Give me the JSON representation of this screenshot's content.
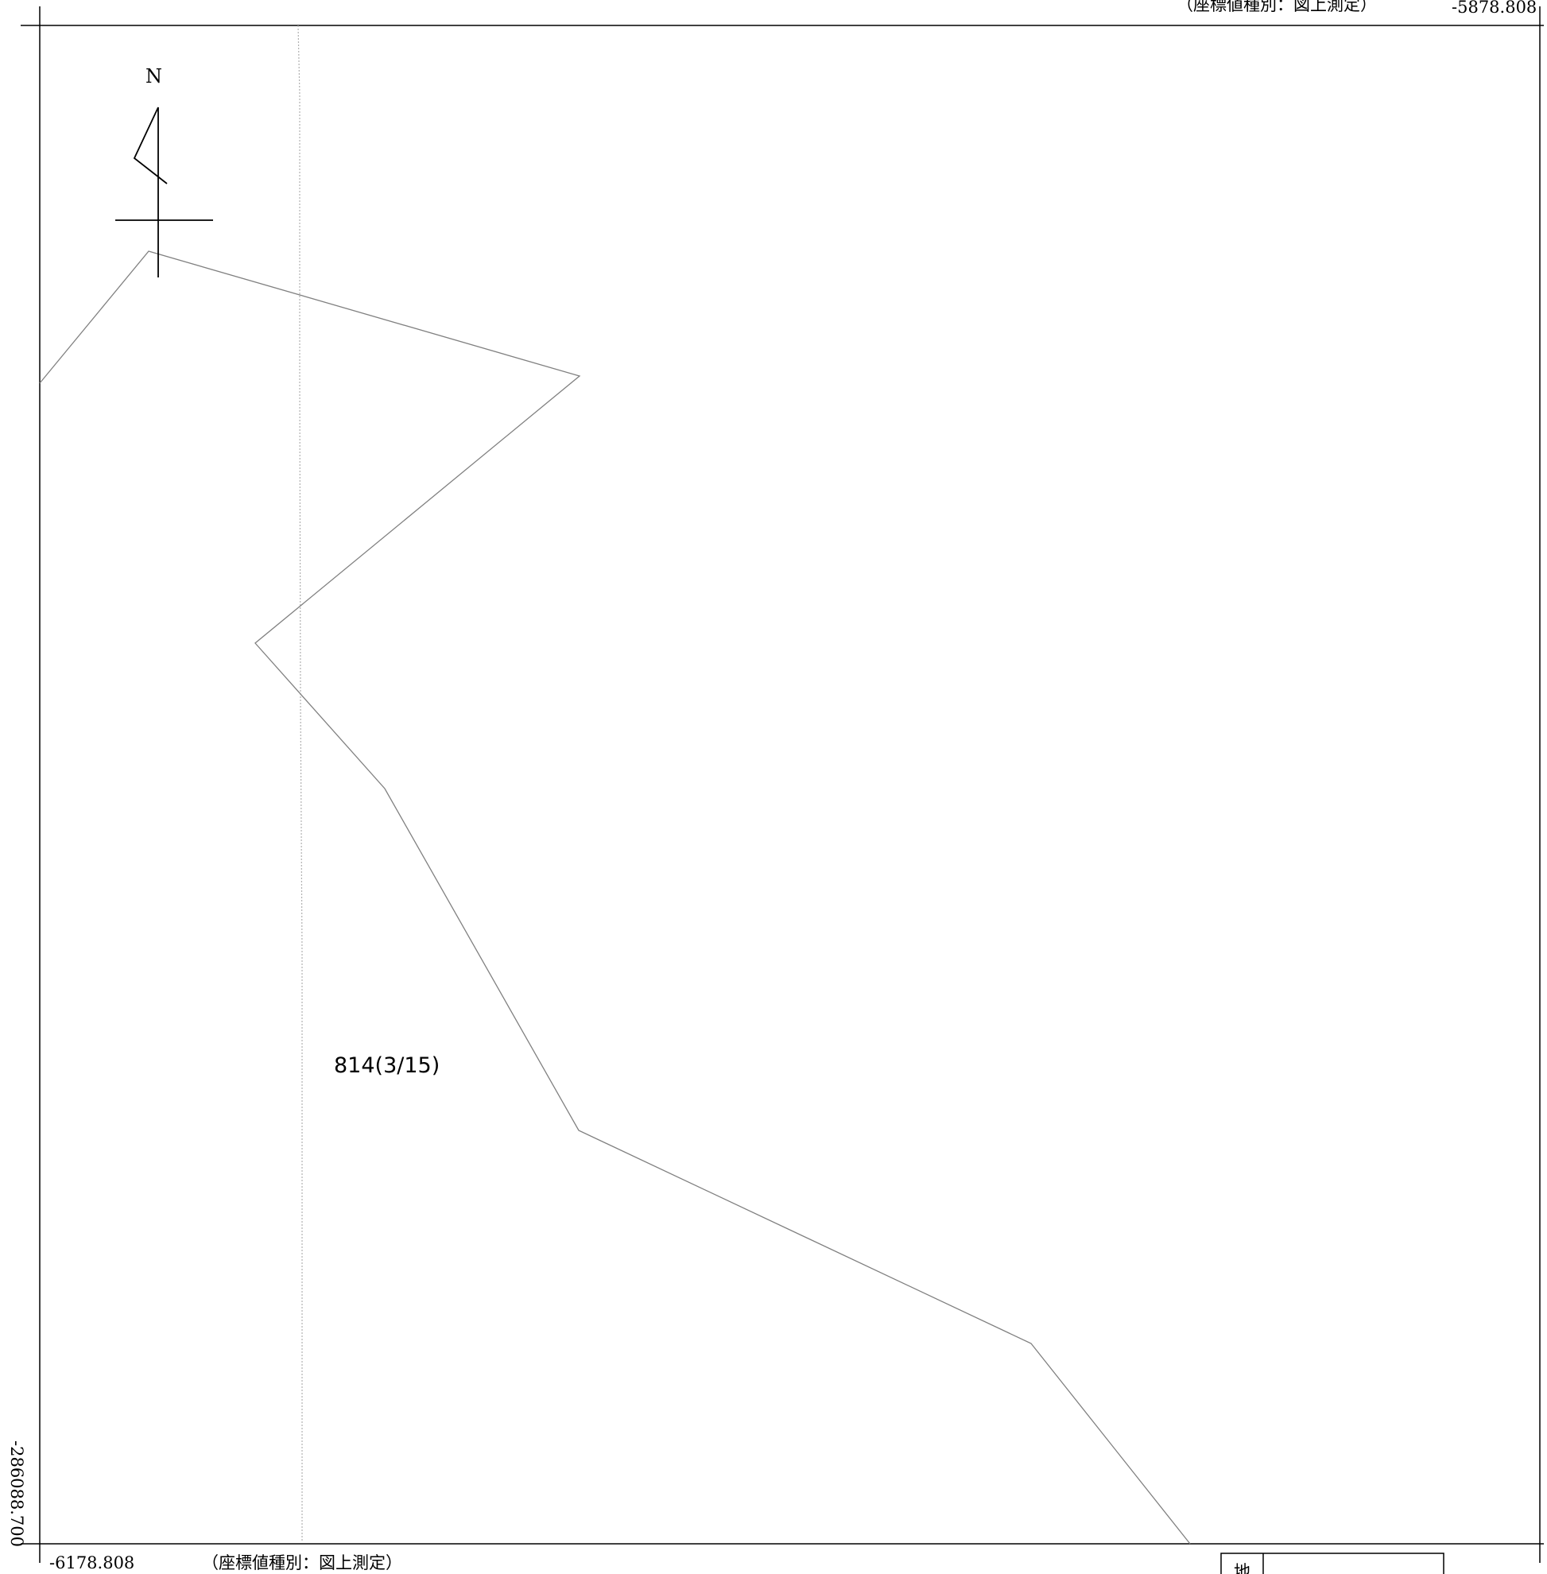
{
  "map": {
    "top_right_coord_type": "（座標値種別：図上測定）",
    "top_right_x": "-5878.808",
    "bottom_left_x": "-6178.808",
    "bottom_left_coord_type": "（座標値種別：図上測定）",
    "left_y": "-286088.700",
    "north_label": "N",
    "parcel_label": "814(3/15)",
    "table_char": "地",
    "colors": {
      "frame": "#000000",
      "boundary": "#808080",
      "guide": "#b0b0b0"
    }
  }
}
